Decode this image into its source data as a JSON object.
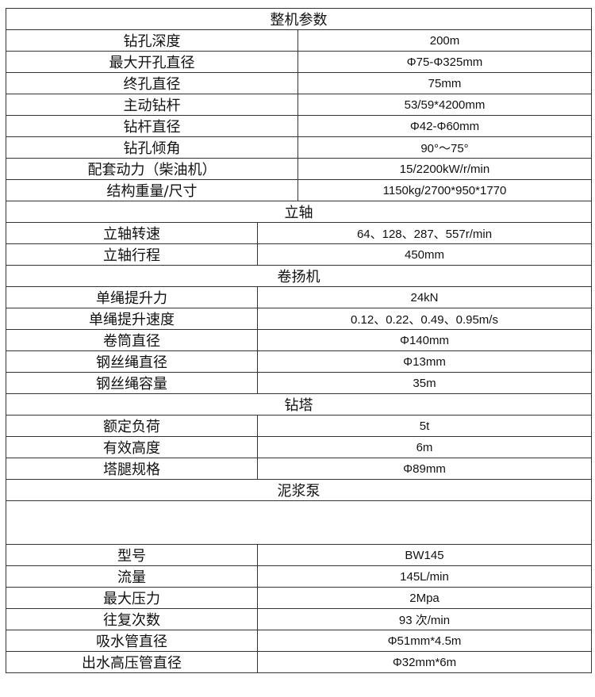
{
  "sections": [
    {
      "title": "整机参数",
      "rows": [
        {
          "label": "钻孔深度",
          "value": "200m"
        },
        {
          "label": "最大开孔直径",
          "value": "Φ75-Φ325mm"
        },
        {
          "label": "终孔直径",
          "value": "75mm"
        },
        {
          "label": "主动钻杆",
          "value": "53/59*4200mm"
        },
        {
          "label": "钻杆直径",
          "value": "Φ42-Φ60mm"
        },
        {
          "label": "钻孔倾角",
          "value": "90°～75°"
        },
        {
          "label": "配套动力（柴油机）",
          "value": "15/2200kW/r/min"
        },
        {
          "label": "结构重量/尺寸",
          "value": "1150kg/2700*950*1770"
        }
      ]
    },
    {
      "title": "立轴",
      "rows": [
        {
          "label": "立轴转速",
          "value": "64、128、287、557r/min"
        },
        {
          "label": "立轴行程",
          "value": "450mm"
        }
      ]
    },
    {
      "title": "卷扬机",
      "rows": [
        {
          "label": "单绳提升力",
          "value": "24kN"
        },
        {
          "label": "单绳提升速度",
          "value": "0.12、0.22、0.49、0.95m/s"
        },
        {
          "label": "卷筒直径",
          "value": "Φ140mm"
        },
        {
          "label": "钢丝绳直径",
          "value": "Φ13mm"
        },
        {
          "label": "钢丝绳容量",
          "value": "35m"
        }
      ]
    },
    {
      "title": "钻塔",
      "rows": [
        {
          "label": "额定负荷",
          "value": "5t"
        },
        {
          "label": "有效高度",
          "value": "6m"
        },
        {
          "label": "塔腿规格",
          "value": "Φ89mm"
        }
      ]
    },
    {
      "title": "泥浆泵",
      "rows": [
        {
          "label": "型号",
          "value": "BW145"
        },
        {
          "label": "流量",
          "value": "145L/min"
        },
        {
          "label": "最大压力",
          "value": "2Mpa"
        },
        {
          "label": "往复次数",
          "value": "93 次/min"
        },
        {
          "label": "吸水管直径",
          "value": "Φ51mm*4.5m"
        },
        {
          "label": "出水高压管直径",
          "value": "Φ32mm*6m"
        }
      ]
    }
  ]
}
